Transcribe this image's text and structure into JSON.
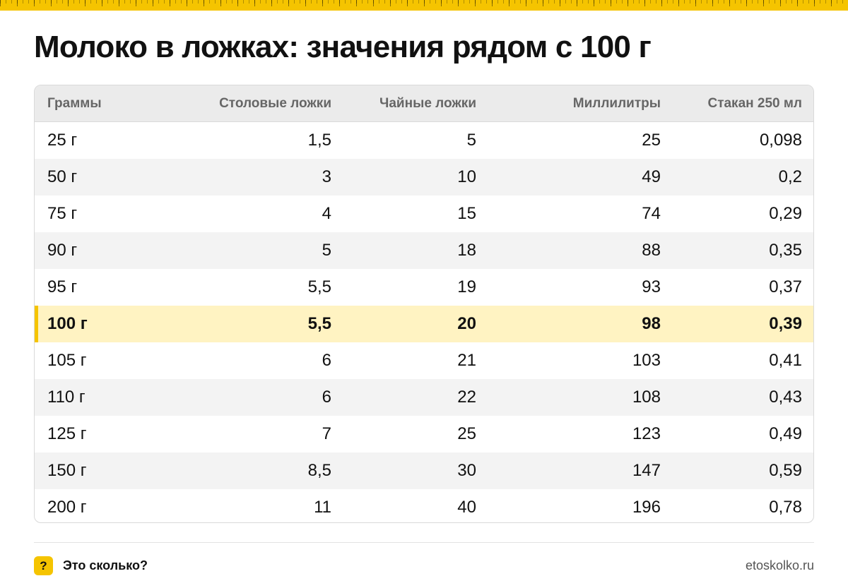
{
  "title": "Молоко в ложках: значения рядом с 100 г",
  "table": {
    "headers": [
      "Граммы",
      "Столовые ложки",
      "Чайные ложки",
      "Миллилитры",
      "Стакан 250 мл"
    ],
    "rows": [
      [
        "25 г",
        "1,5",
        "5",
        "25",
        "0,098"
      ],
      [
        "50 г",
        "3",
        "10",
        "49",
        "0,2"
      ],
      [
        "75 г",
        "4",
        "15",
        "74",
        "0,29"
      ],
      [
        "90 г",
        "5",
        "18",
        "88",
        "0,35"
      ],
      [
        "95 г",
        "5,5",
        "19",
        "93",
        "0,37"
      ],
      [
        "100 г",
        "5,5",
        "20",
        "98",
        "0,39"
      ],
      [
        "105 г",
        "6",
        "21",
        "103",
        "0,41"
      ],
      [
        "110 г",
        "6",
        "22",
        "108",
        "0,43"
      ],
      [
        "125 г",
        "7",
        "25",
        "123",
        "0,49"
      ],
      [
        "150 г",
        "8,5",
        "30",
        "147",
        "0,59"
      ],
      [
        "200 г",
        "11",
        "40",
        "196",
        "0,78"
      ]
    ],
    "highlighted_row": 5
  },
  "footer": {
    "brand_icon": "?",
    "brand_name": "Это сколько?",
    "site": "etoskolko.ru"
  },
  "colors": {
    "accent": "#f5c400",
    "highlight_row": "#fff3c2",
    "header_bg": "#ebebeb",
    "alt_row": "#f3f3f3"
  }
}
